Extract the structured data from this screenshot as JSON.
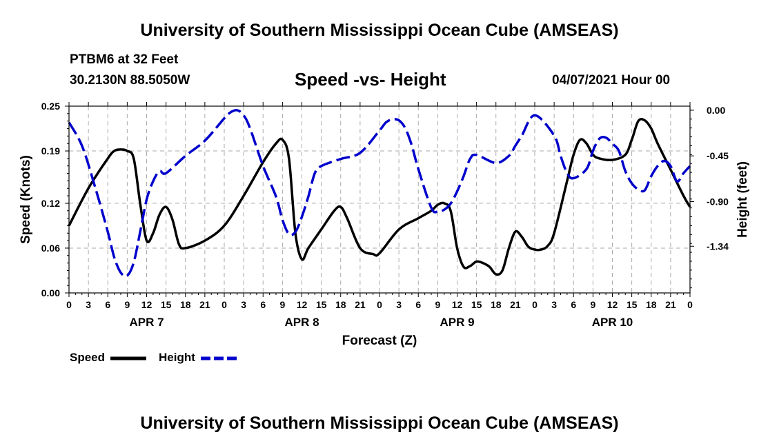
{
  "header": {
    "institution": "University of Southern Mississippi Ocean Cube (AMSEAS)",
    "station": "PTBM6 at 32 Feet",
    "coords": "30.2130N  88.5050W",
    "chart_title": "Speed -vs- Height",
    "datetime": "04/07/2021 Hour 00"
  },
  "footer": {
    "institution": "University of Southern Mississippi Ocean Cube (AMSEAS)"
  },
  "legend": {
    "speed_label": "Speed",
    "height_label": "Height"
  },
  "colors": {
    "speed": "#000000",
    "height": "#0000cc",
    "grid": "#aaaaaa"
  },
  "chart_data": {
    "type": "line",
    "title": "Speed -vs- Height",
    "xlabel": "Forecast (Z)",
    "ylabel": "Speed (Knots)",
    "y2label": "Height (feet)",
    "xlim": [
      0,
      96
    ],
    "ylim": [
      0,
      0.25
    ],
    "y2lim": [
      -1.8,
      0.04
    ],
    "x_ticks": [
      0,
      3,
      6,
      9,
      12,
      15,
      18,
      21,
      24,
      27,
      30,
      33,
      36,
      39,
      42,
      45,
      48,
      51,
      54,
      57,
      60,
      63,
      66,
      69,
      72,
      75,
      78,
      81,
      84,
      87,
      90,
      93,
      96
    ],
    "x_tick_labels": [
      "0",
      "3",
      "6",
      "9",
      "12",
      "15",
      "18",
      "21",
      "0",
      "3",
      "6",
      "9",
      "12",
      "15",
      "18",
      "21",
      "0",
      "3",
      "6",
      "9",
      "12",
      "15",
      "18",
      "21",
      "0",
      "3",
      "6",
      "9",
      "12",
      "15",
      "18",
      "21",
      "0"
    ],
    "day_labels": [
      {
        "x": 12,
        "label": "APR 7"
      },
      {
        "x": 36,
        "label": "APR 8"
      },
      {
        "x": 60,
        "label": "APR 9"
      },
      {
        "x": 84,
        "label": "APR 10"
      }
    ],
    "y_ticks": [
      0.0,
      0.06,
      0.12,
      0.19,
      0.25
    ],
    "y_tick_labels": [
      "0.00",
      "0.06",
      "0.12",
      "0.19",
      "0.25"
    ],
    "y2_ticks": [
      0.0,
      -0.45,
      -0.9,
      -1.34
    ],
    "y2_tick_labels": [
      "0.00",
      "-0.45",
      "-0.90",
      "-1.34"
    ],
    "series": [
      {
        "name": "Speed",
        "axis": "left",
        "dash": "solid",
        "x": [
          0,
          3,
          6,
          7,
          8,
          9,
          10,
          11,
          12,
          13,
          14,
          15,
          16,
          17,
          18,
          21,
          24,
          27,
          30,
          32,
          33,
          34,
          35,
          36,
          37,
          39,
          41,
          42,
          43,
          45,
          47,
          48,
          51,
          54,
          56,
          57,
          58,
          59,
          60,
          61,
          62,
          63,
          64,
          65,
          66,
          67,
          68,
          69,
          70,
          71,
          72,
          73,
          74,
          75,
          77,
          78,
          79,
          80,
          81,
          82,
          84,
          86,
          87,
          88,
          89,
          90,
          91,
          93,
          95,
          96
        ],
        "y": [
          0.09,
          0.14,
          0.18,
          0.19,
          0.192,
          0.19,
          0.18,
          0.12,
          0.07,
          0.08,
          0.105,
          0.115,
          0.098,
          0.065,
          0.06,
          0.07,
          0.09,
          0.13,
          0.175,
          0.2,
          0.205,
          0.18,
          0.08,
          0.045,
          0.06,
          0.085,
          0.11,
          0.115,
          0.1,
          0.06,
          0.052,
          0.053,
          0.085,
          0.1,
          0.11,
          0.118,
          0.12,
          0.11,
          0.06,
          0.035,
          0.036,
          0.042,
          0.04,
          0.035,
          0.025,
          0.03,
          0.06,
          0.082,
          0.075,
          0.062,
          0.058,
          0.058,
          0.063,
          0.08,
          0.15,
          0.185,
          0.205,
          0.2,
          0.185,
          0.18,
          0.178,
          0.185,
          0.205,
          0.23,
          0.231,
          0.22,
          0.2,
          0.165,
          0.13,
          0.115
        ]
      },
      {
        "name": "Height",
        "axis": "right",
        "dash": "dashed",
        "x": [
          0,
          2,
          4,
          6,
          7,
          8,
          9,
          10,
          11,
          12,
          13,
          14,
          15,
          18,
          21,
          24,
          25,
          26,
          27,
          28,
          30,
          32,
          33,
          34,
          35,
          36,
          37,
          38,
          39,
          42,
          45,
          48,
          49,
          50,
          51,
          52,
          53,
          54,
          56,
          57,
          58,
          59,
          60,
          61,
          62,
          63,
          66,
          68,
          69,
          70,
          72,
          75,
          76,
          77,
          78,
          80,
          81,
          82,
          83,
          84,
          85,
          86,
          87,
          88,
          89,
          90,
          91,
          92,
          93,
          94,
          95,
          96
        ],
        "y": [
          -0.12,
          -0.35,
          -0.75,
          -1.2,
          -1.45,
          -1.6,
          -1.63,
          -1.5,
          -1.2,
          -0.88,
          -0.7,
          -0.6,
          -0.62,
          -0.45,
          -0.3,
          -0.08,
          -0.02,
          0.0,
          -0.05,
          -0.18,
          -0.55,
          -0.85,
          -1.08,
          -1.22,
          -1.2,
          -1.05,
          -0.85,
          -0.62,
          -0.55,
          -0.48,
          -0.42,
          -0.2,
          -0.12,
          -0.09,
          -0.1,
          -0.18,
          -0.35,
          -0.58,
          -0.96,
          -1.0,
          -0.98,
          -0.92,
          -0.8,
          -0.65,
          -0.48,
          -0.44,
          -0.52,
          -0.45,
          -0.35,
          -0.25,
          -0.05,
          -0.25,
          -0.45,
          -0.62,
          -0.67,
          -0.58,
          -0.4,
          -0.28,
          -0.27,
          -0.33,
          -0.4,
          -0.6,
          -0.72,
          -0.78,
          -0.79,
          -0.65,
          -0.55,
          -0.5,
          -0.55,
          -0.7,
          -0.62,
          -0.55
        ]
      }
    ]
  }
}
